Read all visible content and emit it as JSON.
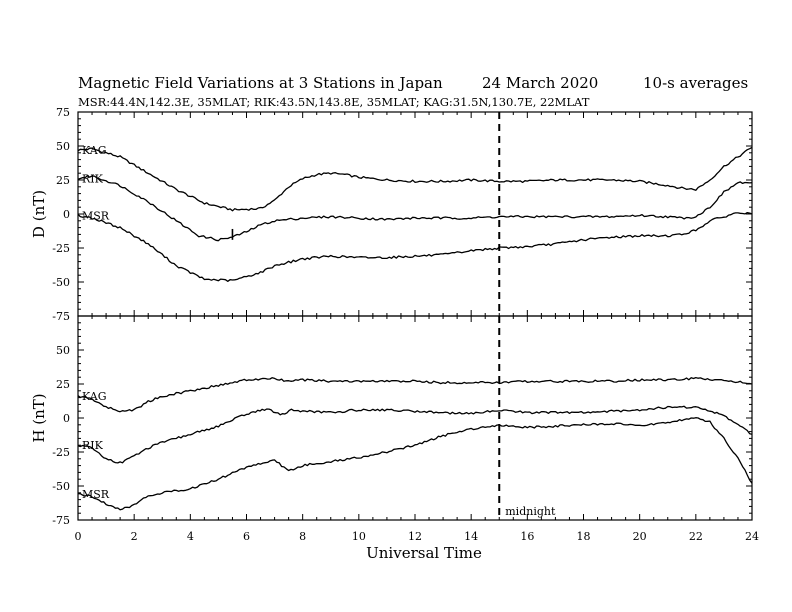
{
  "header": {
    "title": "Magnetic Field Variations at 3 Stations in Japan",
    "date": "24 March   2020",
    "averaging": "10-s averages",
    "stations_line": "MSR:44.4N,142.3E, 35MLAT;  RIK:43.5N,143.8E, 35MLAT;  KAG:31.5N,130.7E, 22MLAT"
  },
  "chart_data": {
    "type": "line",
    "xlabel": "Universal Time",
    "xlim": [
      0,
      24
    ],
    "x_ticks": [
      0,
      2,
      4,
      6,
      8,
      10,
      12,
      14,
      16,
      18,
      20,
      22,
      24
    ],
    "annotation": {
      "x": 15,
      "label": "midnight",
      "style": "dashed"
    },
    "panels": [
      {
        "id": "D",
        "ylabel": "D (nT)",
        "ylim": [
          -75,
          75
        ],
        "y_ticks": [
          75,
          50,
          25,
          0,
          -25,
          -50,
          -75
        ],
        "series": [
          {
            "name": "KAG",
            "x": [
              0,
              0.5,
              1.5,
              2.5,
              3.5,
              4.5,
              5.5,
              6.5,
              7,
              7.5,
              8,
              8.5,
              9,
              9.5,
              10,
              11,
              12,
              13,
              14,
              15,
              16,
              17,
              18,
              19,
              20,
              21,
              21.5,
              22,
              22.5,
              23,
              23.5,
              24
            ],
            "y": [
              47,
              48,
              42,
              30,
              18,
              8,
              3,
              4,
              10,
              20,
              26,
              29,
              30,
              29,
              27,
              25,
              24,
              24,
              25,
              24,
              24,
              25,
              25,
              25,
              24,
              21,
              19,
              18,
              25,
              35,
              42,
              49
            ]
          },
          {
            "name": "RIK",
            "x": [
              0,
              0.5,
              1.5,
              2.5,
              3.5,
              4.3,
              5,
              5.5,
              6,
              6.5,
              7,
              8,
              9,
              10,
              11,
              12,
              13,
              14,
              15,
              16,
              17,
              18,
              19,
              20,
              21,
              21.5,
              22,
              22.5,
              23,
              23.5,
              24
            ],
            "y": [
              26,
              28,
              21,
              9,
              -5,
              -16,
              -19,
              -17,
              -13,
              -8,
              -5,
              -3,
              -2,
              -3,
              -4,
              -3,
              -3,
              -3,
              -2,
              -2,
              -2,
              -2,
              -2,
              -1,
              -2,
              -3,
              -2,
              5,
              16,
              23,
              23
            ]
          },
          {
            "name": "MSR",
            "x": [
              0,
              0.5,
              1.5,
              2.5,
              3.5,
              4.5,
              5.5,
              6.5,
              7,
              8,
              9,
              10,
              11,
              12,
              13,
              14,
              15,
              16,
              17,
              18,
              19,
              20,
              21,
              21.5,
              22,
              22.5,
              23,
              23.5,
              24
            ],
            "y": [
              -1,
              -3,
              -10,
              -22,
              -38,
              -48,
              -49,
              -43,
              -38,
              -33,
              -31,
              -32,
              -32,
              -31,
              -30,
              -27,
              -25,
              -24,
              -22,
              -19,
              -17,
              -16,
              -16,
              -15,
              -12,
              -5,
              -2,
              1,
              0
            ]
          }
        ],
        "spike": {
          "x": 5.5,
          "y_range": [
            -19,
            -11
          ]
        }
      },
      {
        "id": "H",
        "ylabel": "H (nT)",
        "ylim": [
          -75,
          75
        ],
        "y_ticks": [
          75,
          50,
          25,
          0,
          -25,
          -50,
          -75
        ],
        "series": [
          {
            "name": "KAG",
            "x": [
              0,
              0.5,
              1,
              1.5,
              2,
              2.5,
              3,
              4,
              5,
              6,
              7,
              7.5,
              8,
              9,
              10,
              11,
              12,
              13,
              14,
              15,
              16,
              17,
              18,
              19,
              20,
              21,
              22,
              23,
              24
            ],
            "y": [
              16,
              14,
              8,
              5,
              6,
              12,
              16,
              20,
              24,
              28,
              29,
              27,
              28,
              27,
              27,
              27,
              27,
              26,
              26,
              26,
              27,
              27,
              27,
              27,
              28,
              28,
              29,
              28,
              25
            ]
          },
          {
            "name": "RIK",
            "x": [
              0,
              0.5,
              1,
              1.5,
              2,
              2.5,
              3,
              4,
              5,
              6,
              6.8,
              7.2,
              7.6,
              8,
              9,
              10,
              11,
              12,
              13,
              14,
              15,
              16,
              17,
              18,
              19,
              20,
              21,
              22,
              23,
              24
            ],
            "y": [
              -20,
              -22,
              -30,
              -33,
              -28,
              -22,
              -18,
              -12,
              -6,
              3,
              7,
              2,
              6,
              5,
              4,
              6,
              6,
              5,
              4,
              3,
              6,
              4,
              4,
              4,
              5,
              6,
              8,
              8,
              2,
              -12
            ]
          },
          {
            "name": "MSR",
            "x": [
              0,
              0.5,
              1,
              1.5,
              2,
              2.5,
              3,
              4,
              5,
              6,
              7,
              7.5,
              8,
              9,
              10,
              11,
              12,
              13,
              14,
              15,
              16,
              17,
              18,
              19,
              20,
              21,
              22,
              22.5,
              23,
              23.5,
              24
            ],
            "y": [
              -56,
              -58,
              -63,
              -67,
              -64,
              -57,
              -55,
              -52,
              -45,
              -36,
              -31,
              -39,
              -35,
              -32,
              -29,
              -25,
              -20,
              -13,
              -8,
              -5,
              -7,
              -6,
              -5,
              -4,
              -6,
              -3,
              0,
              -3,
              -15,
              -30,
              -48
            ]
          }
        ]
      }
    ]
  }
}
